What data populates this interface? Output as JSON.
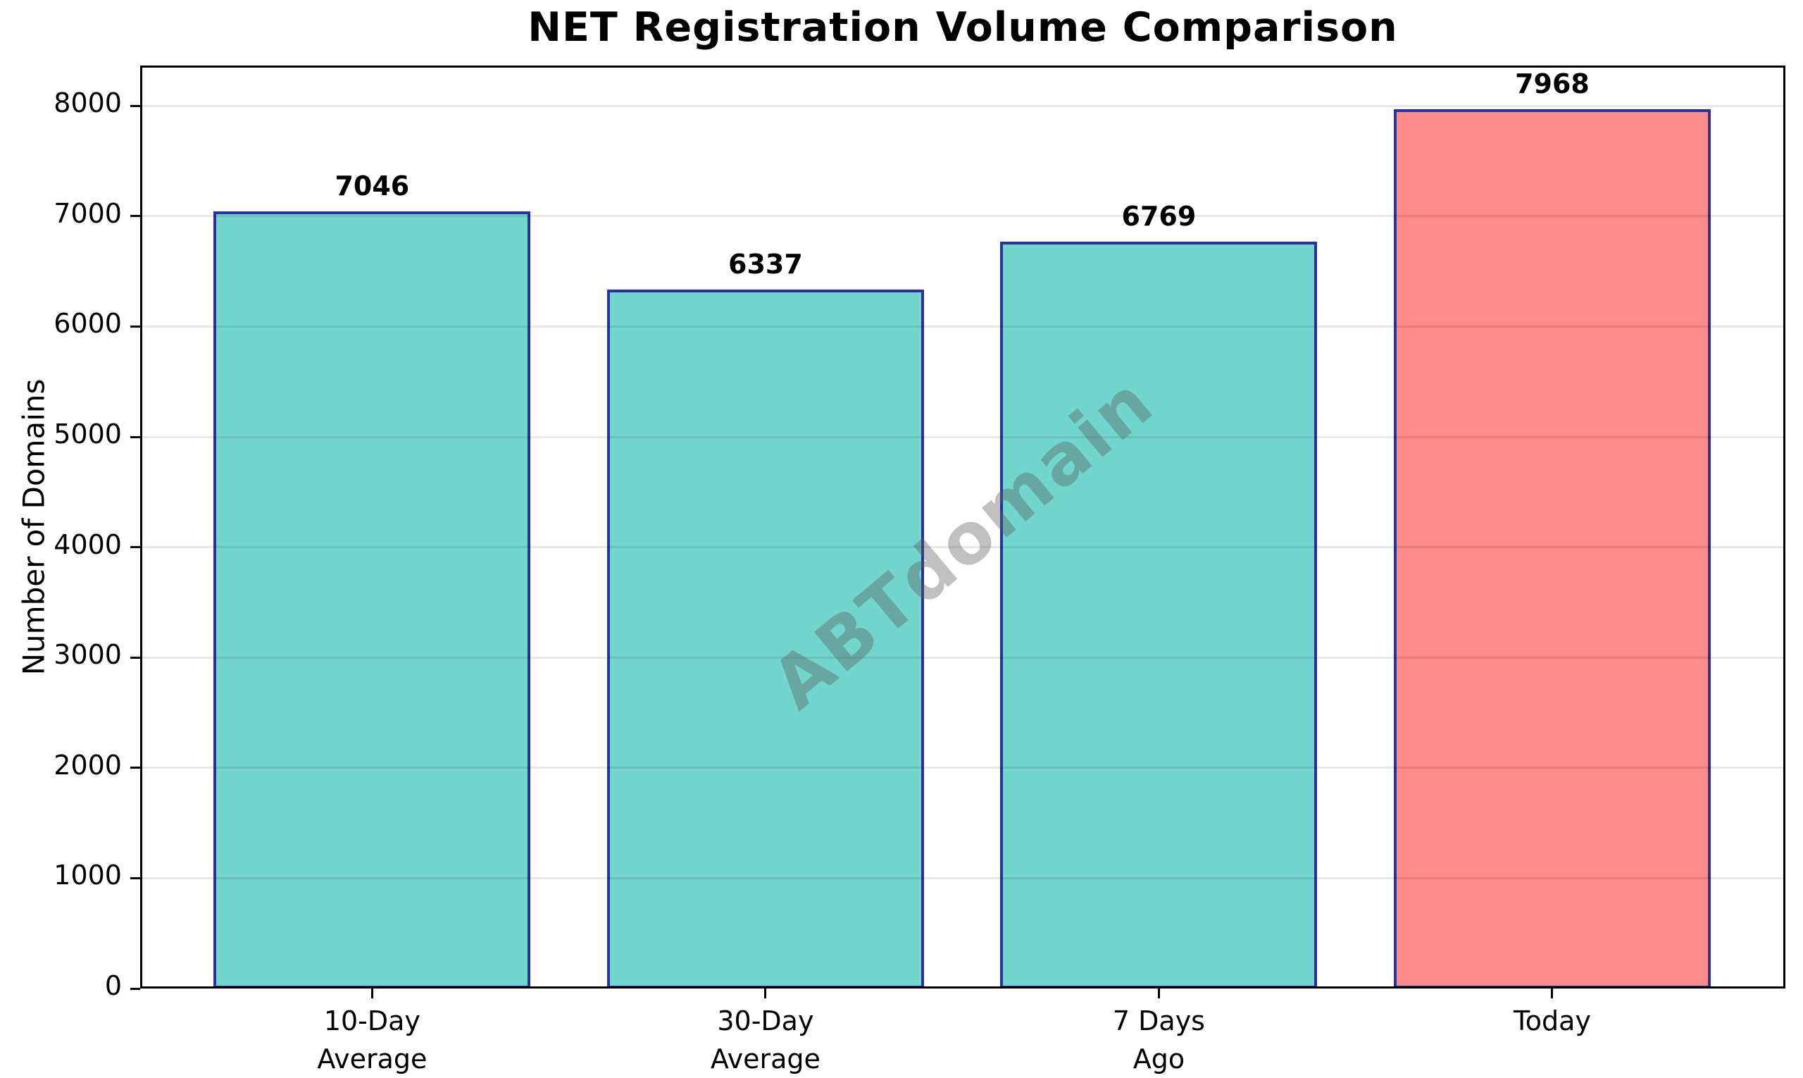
{
  "chart_data": {
    "type": "bar",
    "title": "NET Registration Volume Comparison",
    "ylabel": "Number of Domains",
    "xlabel": "",
    "categories": [
      "10-Day\nAverage",
      "30-Day\nAverage",
      "7 Days\nAgo",
      "Today"
    ],
    "values": [
      7046,
      6337,
      6769,
      7968
    ],
    "value_labels": [
      "7046",
      "6337",
      "6769",
      "7968"
    ],
    "bar_colors": [
      "#72D6CE",
      "#72D6CE",
      "#72D6CE",
      "#FF8A8A"
    ],
    "bar_edge_color": "#28329B",
    "yticks": [
      0,
      1000,
      2000,
      3000,
      4000,
      5000,
      6000,
      7000,
      8000
    ],
    "ylim": [
      0,
      8366
    ],
    "grid": "horizontal",
    "gridline_color": "#E8E8E8",
    "legend": "none",
    "watermark": "ABTdomain"
  }
}
